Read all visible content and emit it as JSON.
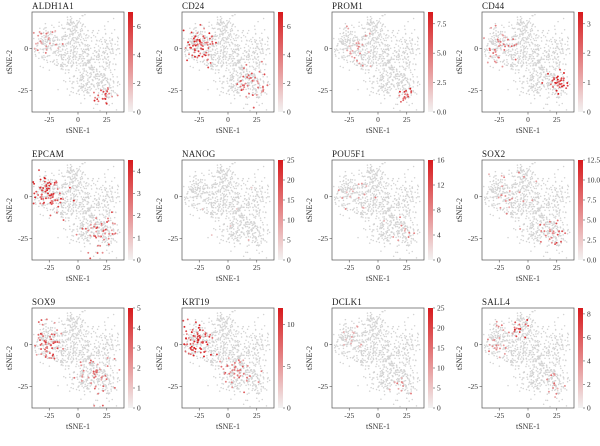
{
  "figure": {
    "x_axis_label": "tSNE-1",
    "y_axis_label": "tSNE-2",
    "background_color": "#d3d3d3",
    "low_color": "#f2f2f2",
    "high_color": "#d7191c"
  },
  "chart_data": [
    {
      "type": "scatter",
      "title": "ALDH1A1",
      "xlabel": "tSNE-1",
      "ylabel": "tSNE-2",
      "xlim": [
        -40,
        40
      ],
      "ylim": [
        -38,
        22
      ],
      "xticks": [
        -25,
        0,
        25
      ],
      "yticks": [
        0,
        -25
      ],
      "colorbar": {
        "min": 0,
        "max": 7,
        "ticks": [
          "0",
          "2",
          "4",
          "6"
        ]
      },
      "expression_regions": [
        {
          "x": -30,
          "y": 4,
          "spread": 8,
          "level": 0.5,
          "count": 30
        },
        {
          "x": 22,
          "y": -28,
          "spread": 6,
          "level": 0.8,
          "count": 25
        }
      ]
    },
    {
      "type": "scatter",
      "title": "CD24",
      "xlabel": "tSNE-1",
      "ylabel": "tSNE-2",
      "xlim": [
        -40,
        40
      ],
      "ylim": [
        -38,
        22
      ],
      "xticks": [
        -25,
        0,
        25
      ],
      "yticks": [
        0,
        -25
      ],
      "colorbar": {
        "min": 0,
        "max": 7,
        "ticks": [
          "0",
          "2",
          "4",
          "6"
        ]
      },
      "expression_regions": [
        {
          "x": -28,
          "y": 2,
          "spread": 9,
          "level": 0.85,
          "count": 70
        },
        {
          "x": 20,
          "y": -22,
          "spread": 9,
          "level": 0.7,
          "count": 40
        }
      ]
    },
    {
      "type": "scatter",
      "title": "PROM1",
      "xlabel": "tSNE-1",
      "ylabel": "tSNE-2",
      "xlim": [
        -40,
        40
      ],
      "ylim": [
        -38,
        22
      ],
      "xticks": [
        -25,
        0,
        25
      ],
      "yticks": [
        0,
        -25
      ],
      "colorbar": {
        "min": 0,
        "max": 8.5,
        "ticks": [
          "0.0",
          "2.5",
          "5.0",
          "7.5"
        ]
      },
      "expression_regions": [
        {
          "x": -18,
          "y": 0,
          "spread": 9,
          "level": 0.45,
          "count": 25
        },
        {
          "x": 25,
          "y": -28,
          "spread": 4,
          "level": 0.85,
          "count": 18
        }
      ]
    },
    {
      "type": "scatter",
      "title": "CD44",
      "xlabel": "tSNE-1",
      "ylabel": "tSNE-2",
      "xlim": [
        -40,
        40
      ],
      "ylim": [
        -38,
        22
      ],
      "xticks": [
        -25,
        0,
        25
      ],
      "yticks": [
        0,
        -25
      ],
      "colorbar": {
        "min": 0,
        "max": 3.4,
        "ticks": [
          "0",
          "1",
          "2",
          "3"
        ]
      },
      "expression_regions": [
        {
          "x": -25,
          "y": 2,
          "spread": 9,
          "level": 0.55,
          "count": 35
        },
        {
          "x": 25,
          "y": -20,
          "spread": 6,
          "level": 0.9,
          "count": 35
        }
      ]
    },
    {
      "type": "scatter",
      "title": "EPCAM",
      "xlabel": "tSNE-1",
      "ylabel": "tSNE-2",
      "xlim": [
        -40,
        40
      ],
      "ylim": [
        -38,
        22
      ],
      "xticks": [
        -25,
        0,
        25
      ],
      "yticks": [
        0,
        -25
      ],
      "colorbar": {
        "min": 0,
        "max": 4.5,
        "ticks": [
          "0",
          "1",
          "2",
          "3",
          "4"
        ]
      },
      "expression_regions": [
        {
          "x": -28,
          "y": 2,
          "spread": 10,
          "level": 0.85,
          "count": 80
        },
        {
          "x": 18,
          "y": -22,
          "spread": 10,
          "level": 0.65,
          "count": 45
        }
      ]
    },
    {
      "type": "scatter",
      "title": "NANOG",
      "xlabel": "tSNE-1",
      "ylabel": "tSNE-2",
      "xlim": [
        -40,
        40
      ],
      "ylim": [
        -38,
        22
      ],
      "xticks": [
        -25,
        0,
        25
      ],
      "yticks": [
        0,
        -25
      ],
      "colorbar": {
        "min": 0,
        "max": 25,
        "ticks": [
          "0",
          "5",
          "10",
          "15",
          "20",
          "25"
        ]
      },
      "expression_regions": [
        {
          "x": 0,
          "y": -10,
          "spread": 18,
          "level": 0.25,
          "count": 6
        }
      ]
    },
    {
      "type": "scatter",
      "title": "POU5F1",
      "xlabel": "tSNE-1",
      "ylabel": "tSNE-2",
      "xlim": [
        -40,
        40
      ],
      "ylim": [
        -38,
        22
      ],
      "xticks": [
        -25,
        0,
        25
      ],
      "yticks": [
        0,
        -25
      ],
      "colorbar": {
        "min": 0,
        "max": 16,
        "ticks": [
          "0",
          "4",
          "8",
          "12",
          "16"
        ]
      },
      "expression_regions": [
        {
          "x": -20,
          "y": 0,
          "spread": 12,
          "level": 0.45,
          "count": 15
        },
        {
          "x": 22,
          "y": -18,
          "spread": 8,
          "level": 0.5,
          "count": 10
        }
      ]
    },
    {
      "type": "scatter",
      "title": "SOX2",
      "xlabel": "tSNE-1",
      "ylabel": "tSNE-2",
      "xlim": [
        -40,
        40
      ],
      "ylim": [
        -38,
        22
      ],
      "xticks": [
        -25,
        0,
        25
      ],
      "yticks": [
        0,
        -25
      ],
      "colorbar": {
        "min": 0,
        "max": 12.5,
        "ticks": [
          "0.0",
          "2.5",
          "5.0",
          "7.5",
          "10.0",
          "12.5"
        ]
      },
      "expression_regions": [
        {
          "x": -18,
          "y": 0,
          "spread": 12,
          "level": 0.45,
          "count": 22
        },
        {
          "x": 22,
          "y": -22,
          "spread": 7,
          "level": 0.7,
          "count": 25
        }
      ]
    },
    {
      "type": "scatter",
      "title": "SOX9",
      "xlabel": "tSNE-1",
      "ylabel": "tSNE-2",
      "xlim": [
        -40,
        40
      ],
      "ylim": [
        -38,
        22
      ],
      "xticks": [
        -25,
        0,
        25
      ],
      "yticks": [
        0,
        -25
      ],
      "colorbar": {
        "min": 0,
        "max": 5,
        "ticks": [
          "0",
          "1",
          "2",
          "3",
          "4",
          "5"
        ]
      },
      "expression_regions": [
        {
          "x": -25,
          "y": 2,
          "spread": 10,
          "level": 0.7,
          "count": 55
        },
        {
          "x": 15,
          "y": -20,
          "spread": 10,
          "level": 0.6,
          "count": 40
        }
      ]
    },
    {
      "type": "scatter",
      "title": "KRT19",
      "xlabel": "tSNE-1",
      "ylabel": "tSNE-2",
      "xlim": [
        -40,
        40
      ],
      "ylim": [
        -38,
        22
      ],
      "xticks": [
        -25,
        0,
        25
      ],
      "yticks": [
        0,
        -25
      ],
      "colorbar": {
        "min": 0,
        "max": 12,
        "ticks": [
          "0",
          "5",
          "10"
        ]
      },
      "expression_regions": [
        {
          "x": -28,
          "y": 2,
          "spread": 9,
          "level": 0.9,
          "count": 75
        },
        {
          "x": 10,
          "y": -15,
          "spread": 10,
          "level": 0.6,
          "count": 40
        }
      ]
    },
    {
      "type": "scatter",
      "title": "DCLK1",
      "xlabel": "tSNE-1",
      "ylabel": "tSNE-2",
      "xlim": [
        -40,
        40
      ],
      "ylim": [
        -38,
        22
      ],
      "xticks": [
        -25,
        0,
        25
      ],
      "yticks": [
        0,
        -25
      ],
      "colorbar": {
        "min": 0,
        "max": 25,
        "ticks": [
          "0",
          "5",
          "10",
          "15",
          "20",
          "25"
        ]
      },
      "expression_regions": [
        {
          "x": -25,
          "y": 5,
          "spread": 10,
          "level": 0.35,
          "count": 12
        },
        {
          "x": 20,
          "y": -25,
          "spread": 6,
          "level": 0.5,
          "count": 10
        }
      ]
    },
    {
      "type": "scatter",
      "title": "SALL4",
      "xlabel": "tSNE-1",
      "ylabel": "tSNE-2",
      "xlim": [
        -40,
        40
      ],
      "ylim": [
        -38,
        22
      ],
      "xticks": [
        -25,
        0,
        25
      ],
      "yticks": [
        0,
        -25
      ],
      "colorbar": {
        "min": 0,
        "max": 8.5,
        "ticks": [
          "0",
          "2",
          "4",
          "6",
          "8"
        ]
      },
      "expression_regions": [
        {
          "x": -8,
          "y": 10,
          "spread": 6,
          "level": 0.8,
          "count": 15
        },
        {
          "x": -25,
          "y": 2,
          "spread": 9,
          "level": 0.5,
          "count": 25
        },
        {
          "x": 22,
          "y": -22,
          "spread": 6,
          "level": 0.55,
          "count": 12
        }
      ]
    }
  ]
}
